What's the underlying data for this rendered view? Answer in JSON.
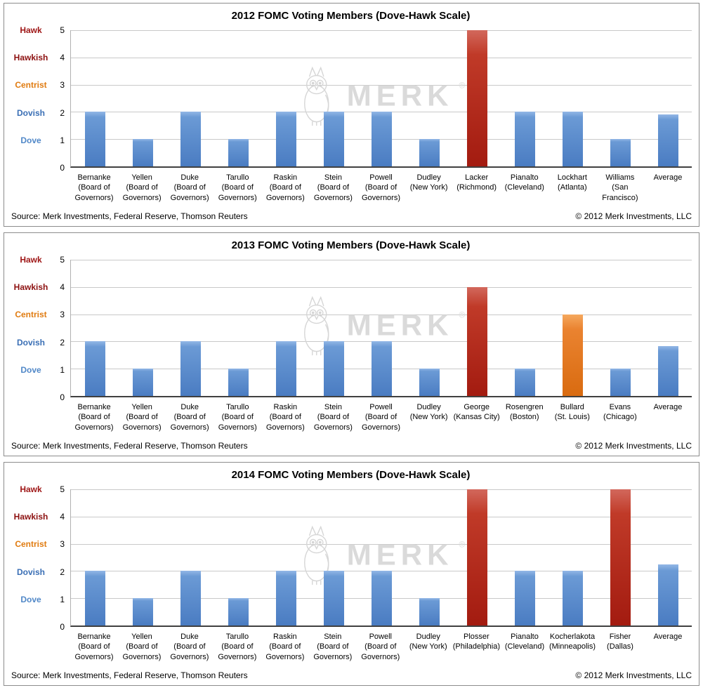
{
  "watermark": {
    "text": "MERK",
    "reg": "®"
  },
  "axis": {
    "scale_labels": [
      {
        "label": "Hawk",
        "level": 5,
        "color": "#9e1515"
      },
      {
        "label": "Hawkish",
        "level": 4,
        "color": "#8c1010"
      },
      {
        "label": "Centrist",
        "level": 3,
        "color": "#e07b10"
      },
      {
        "label": "Dovish",
        "level": 2,
        "color": "#3a6fb5"
      },
      {
        "label": "Dove",
        "level": 1,
        "color": "#5188c8"
      }
    ],
    "ticks": [
      5,
      4,
      3,
      2,
      1,
      0
    ]
  },
  "footer": {
    "source": "Source: Merk Investments, Federal Reserve, Thomson Reuters",
    "copyright": "© 2012 Merk Investments, LLC"
  },
  "chart_data": [
    {
      "type": "bar",
      "title": "2012 FOMC Voting Members (Dove-Hawk Scale)",
      "ylim": [
        0,
        5
      ],
      "members": [
        {
          "name": "Bernanke",
          "affiliation": "(Board of Governors)",
          "value": 2,
          "color": "blue"
        },
        {
          "name": "Yellen",
          "affiliation": "(Board of Governors)",
          "value": 1,
          "color": "blue"
        },
        {
          "name": "Duke",
          "affiliation": "(Board of Governors)",
          "value": 2,
          "color": "blue"
        },
        {
          "name": "Tarullo",
          "affiliation": "(Board of Governors)",
          "value": 1,
          "color": "blue"
        },
        {
          "name": "Raskin",
          "affiliation": "(Board of Governors)",
          "value": 2,
          "color": "blue"
        },
        {
          "name": "Stein",
          "affiliation": "(Board of Governors)",
          "value": 2,
          "color": "blue"
        },
        {
          "name": "Powell",
          "affiliation": "(Board of Governors)",
          "value": 2,
          "color": "blue"
        },
        {
          "name": "Dudley",
          "affiliation": "(New York)",
          "value": 1,
          "color": "blue"
        },
        {
          "name": "Lacker",
          "affiliation": "(Richmond)",
          "value": 5,
          "color": "red"
        },
        {
          "name": "Pianalto",
          "affiliation": "(Cleveland)",
          "value": 2,
          "color": "blue"
        },
        {
          "name": "Lockhart",
          "affiliation": "(Atlanta)",
          "value": 2,
          "color": "blue"
        },
        {
          "name": "Williams",
          "affiliation": "(San Francisco)",
          "value": 1,
          "color": "blue"
        },
        {
          "name": "Average",
          "affiliation": "",
          "value": 1.92,
          "color": "blue"
        }
      ]
    },
    {
      "type": "bar",
      "title": "2013 FOMC Voting Members (Dove-Hawk Scale)",
      "ylim": [
        0,
        5
      ],
      "members": [
        {
          "name": "Bernanke",
          "affiliation": "(Board of Governors)",
          "value": 2,
          "color": "blue"
        },
        {
          "name": "Yellen",
          "affiliation": "(Board of Governors)",
          "value": 1,
          "color": "blue"
        },
        {
          "name": "Duke",
          "affiliation": "(Board of Governors)",
          "value": 2,
          "color": "blue"
        },
        {
          "name": "Tarullo",
          "affiliation": "(Board of Governors)",
          "value": 1,
          "color": "blue"
        },
        {
          "name": "Raskin",
          "affiliation": "(Board of Governors)",
          "value": 2,
          "color": "blue"
        },
        {
          "name": "Stein",
          "affiliation": "(Board of Governors)",
          "value": 2,
          "color": "blue"
        },
        {
          "name": "Powell",
          "affiliation": "(Board of Governors)",
          "value": 2,
          "color": "blue"
        },
        {
          "name": "Dudley",
          "affiliation": "(New York)",
          "value": 1,
          "color": "blue"
        },
        {
          "name": "George",
          "affiliation": "(Kansas City)",
          "value": 4,
          "color": "red"
        },
        {
          "name": "Rosengren",
          "affiliation": "(Boston)",
          "value": 1,
          "color": "blue"
        },
        {
          "name": "Bullard",
          "affiliation": "(St. Louis)",
          "value": 3,
          "color": "orange"
        },
        {
          "name": "Evans",
          "affiliation": "(Chicago)",
          "value": 1,
          "color": "blue"
        },
        {
          "name": "Average",
          "affiliation": "",
          "value": 1.83,
          "color": "blue"
        }
      ]
    },
    {
      "type": "bar",
      "title": "2014 FOMC Voting Members (Dove-Hawk Scale)",
      "ylim": [
        0,
        5
      ],
      "members": [
        {
          "name": "Bernanke",
          "affiliation": "(Board of Governors)",
          "value": 2,
          "color": "blue"
        },
        {
          "name": "Yellen",
          "affiliation": "(Board of Governors)",
          "value": 1,
          "color": "blue"
        },
        {
          "name": "Duke",
          "affiliation": "(Board of Governors)",
          "value": 2,
          "color": "blue"
        },
        {
          "name": "Tarullo",
          "affiliation": "(Board of Governors)",
          "value": 1,
          "color": "blue"
        },
        {
          "name": "Raskin",
          "affiliation": "(Board of Governors)",
          "value": 2,
          "color": "blue"
        },
        {
          "name": "Stein",
          "affiliation": "(Board of Governors)",
          "value": 2,
          "color": "blue"
        },
        {
          "name": "Powell",
          "affiliation": "(Board of Governors)",
          "value": 2,
          "color": "blue"
        },
        {
          "name": "Dudley",
          "affiliation": "(New York)",
          "value": 1,
          "color": "blue"
        },
        {
          "name": "Plosser",
          "affiliation": "(Philadelphia)",
          "value": 5,
          "color": "red"
        },
        {
          "name": "Pianalto",
          "affiliation": "(Cleveland)",
          "value": 2,
          "color": "blue"
        },
        {
          "name": "Kocherlakota",
          "affiliation": "(Minneapolis)",
          "value": 2,
          "color": "blue"
        },
        {
          "name": "Fisher",
          "affiliation": "(Dallas)",
          "value": 5,
          "color": "red"
        },
        {
          "name": "Average",
          "affiliation": "",
          "value": 2.25,
          "color": "blue"
        }
      ]
    }
  ]
}
